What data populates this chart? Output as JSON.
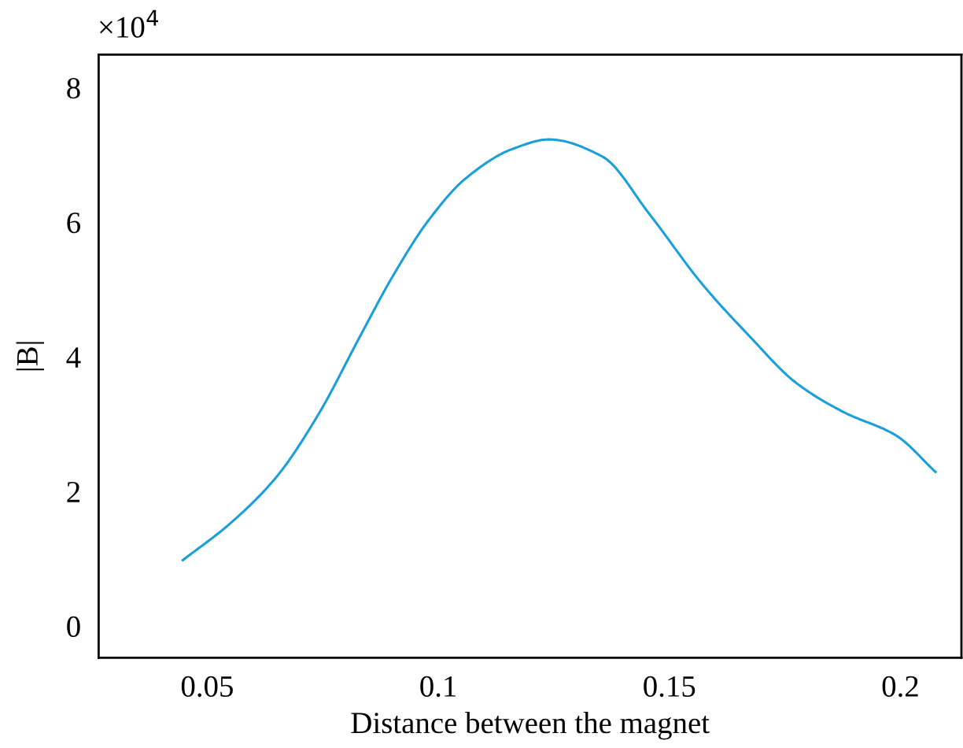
{
  "chart_data": {
    "type": "line",
    "xlabel": "Distance between the magnet",
    "ylabel": "|B|",
    "annotations": [
      "×10$^{4}$"
    ],
    "series": [
      {
        "color": "#1a9fdb",
        "x": [
          0.0447,
          0.0547,
          0.0649,
          0.074,
          0.0831,
          0.0899,
          0.0979,
          0.1059,
          0.1161,
          0.124,
          0.1354,
          0.1457,
          0.157,
          0.1673,
          0.1775,
          0.1877,
          0.1991,
          0.2076
        ],
        "values": [
          0.98,
          1.51,
          2.21,
          3.14,
          4.31,
          5.17,
          6.03,
          6.65,
          7.09,
          7.23,
          6.98,
          6.12,
          5.09,
          4.31,
          3.61,
          3.18,
          2.83,
          2.29
        ]
      }
    ],
    "xlim": [
      0.0265,
      0.2132
    ],
    "ylim": [
      -0.47,
      8.49
    ],
    "xticks": [
      0.05,
      0.1,
      0.15,
      0.2
    ],
    "yticks": [
      0,
      2,
      4,
      6,
      8
    ],
    "line_style": "solid",
    "marker": "none"
  }
}
